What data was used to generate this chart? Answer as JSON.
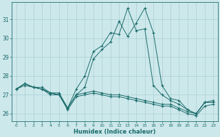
{
  "xlabel": "Humidex (Indice chaleur)",
  "bg_color": "#cde8eb",
  "line_color": "#1a6b6b",
  "grid_color": "#aacfd4",
  "x_ticks": [
    0,
    1,
    2,
    3,
    4,
    5,
    6,
    7,
    8,
    9,
    10,
    11,
    12,
    13,
    14,
    15,
    16,
    17,
    18,
    19,
    20,
    21,
    22,
    23
  ],
  "y_ticks": [
    26,
    27,
    28,
    29,
    30,
    31
  ],
  "xlim": [
    -0.5,
    23.5
  ],
  "ylim": [
    25.6,
    31.9
  ],
  "series": [
    {
      "x": [
        0,
        1,
        2,
        3,
        4,
        5,
        6,
        7,
        8,
        9,
        10,
        11,
        12,
        13,
        14,
        15,
        16,
        17,
        18,
        19,
        20,
        21,
        22,
        23
      ],
      "y": [
        27.3,
        27.6,
        27.4,
        27.3,
        27.1,
        27.0,
        26.3,
        27.0,
        27.4,
        28.9,
        29.4,
        29.8,
        30.9,
        30.1,
        30.8,
        31.6,
        30.3,
        27.5,
        26.8,
        26.7,
        26.2,
        26.0,
        26.6,
        26.6
      ]
    },
    {
      "x": [
        0,
        1,
        2,
        3,
        4,
        5,
        6,
        7,
        8,
        9,
        10,
        11,
        12,
        13,
        14,
        15,
        16,
        17,
        18,
        19,
        20,
        21,
        22,
        23
      ],
      "y": [
        27.3,
        27.6,
        27.4,
        27.3,
        27.1,
        27.0,
        26.3,
        27.3,
        28.0,
        29.3,
        29.6,
        30.3,
        30.2,
        31.6,
        30.4,
        30.5,
        27.5,
        27.0,
        26.7,
        26.5,
        26.2,
        26.0,
        26.6,
        26.7
      ]
    },
    {
      "x": [
        0,
        1,
        2,
        3,
        4,
        5,
        6,
        7,
        8,
        9,
        10,
        11,
        12,
        13,
        14,
        15,
        16,
        17,
        18,
        19,
        20,
        21,
        22,
        23
      ],
      "y": [
        27.3,
        27.6,
        27.4,
        27.4,
        27.1,
        27.1,
        26.3,
        27.0,
        27.1,
        27.2,
        27.1,
        27.0,
        27.0,
        26.9,
        26.8,
        26.7,
        26.6,
        26.5,
        26.5,
        26.3,
        26.1,
        26.0,
        26.6,
        26.6
      ]
    },
    {
      "x": [
        0,
        1,
        2,
        3,
        4,
        5,
        6,
        7,
        8,
        9,
        10,
        11,
        12,
        13,
        14,
        15,
        16,
        17,
        18,
        19,
        20,
        21,
        22,
        23
      ],
      "y": [
        27.3,
        27.5,
        27.4,
        27.3,
        27.0,
        27.0,
        26.2,
        26.9,
        27.0,
        27.1,
        27.0,
        26.9,
        26.9,
        26.8,
        26.7,
        26.6,
        26.5,
        26.4,
        26.4,
        26.2,
        26.0,
        25.9,
        26.4,
        26.5
      ]
    }
  ],
  "short_series": {
    "x": [
      5,
      6,
      7,
      8
    ],
    "y": [
      27.0,
      26.3,
      27.6,
      27.8
    ]
  }
}
